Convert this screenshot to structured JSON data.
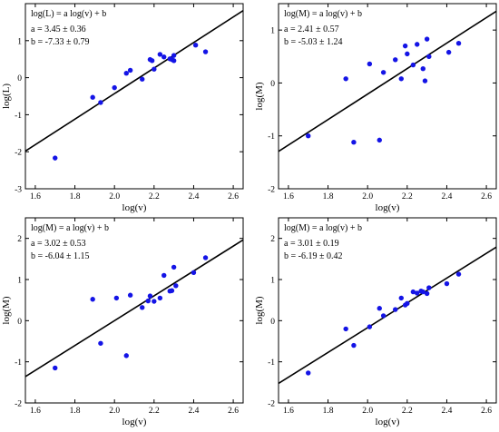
{
  "chart_data": [
    {
      "type": "scatter",
      "equation": "log(L) = a log(v) + b",
      "a_text": "a =  3.45 ± 0.36",
      "b_text": "b = -7.33 ± 0.79",
      "xlabel": "log(v)",
      "ylabel": "log(L)",
      "xlim": [
        1.55,
        2.65
      ],
      "ylim": [
        -3,
        2
      ],
      "xticks": [
        1.6,
        1.8,
        2.0,
        2.2,
        2.4,
        2.6
      ],
      "yticks": [
        -3,
        -2,
        -1,
        0,
        1
      ],
      "fit": {
        "slope": 3.45,
        "intercept": -7.33
      },
      "colors": {
        "points": "#1414e6",
        "line": "#000000"
      },
      "x": [
        1.7,
        1.89,
        1.93,
        2.0,
        2.06,
        2.08,
        2.14,
        2.18,
        2.19,
        2.2,
        2.23,
        2.25,
        2.28,
        2.3,
        2.29,
        2.3,
        2.41,
        2.46
      ],
      "y": [
        -2.17,
        -0.53,
        -0.67,
        -0.27,
        0.12,
        0.2,
        -0.04,
        0.49,
        0.46,
        0.23,
        0.63,
        0.56,
        0.51,
        0.6,
        0.49,
        0.46,
        0.88,
        0.7
      ]
    },
    {
      "type": "scatter",
      "equation": "log(M) = a log(v) + b",
      "a_text": "a =  2.41 ± 0.57",
      "b_text": "b = -5.03 ± 1.24",
      "xlabel": "log(v)",
      "ylabel": "log(M)",
      "xlim": [
        1.55,
        2.65
      ],
      "ylim": [
        -2,
        1.5
      ],
      "xticks": [
        1.6,
        1.8,
        2.0,
        2.2,
        2.4,
        2.6
      ],
      "yticks": [
        -2,
        -1,
        0,
        1
      ],
      "fit": {
        "slope": 2.41,
        "intercept": -5.03
      },
      "colors": {
        "points": "#1414e6",
        "line": "#000000"
      },
      "x": [
        1.7,
        1.89,
        1.93,
        2.01,
        2.06,
        2.08,
        2.14,
        2.17,
        2.19,
        2.2,
        2.23,
        2.25,
        2.28,
        2.29,
        2.3,
        2.31,
        2.41,
        2.46
      ],
      "y": [
        -1.0,
        0.08,
        -1.12,
        0.36,
        -1.08,
        0.2,
        0.44,
        0.08,
        0.7,
        0.55,
        0.34,
        0.73,
        0.27,
        0.04,
        0.83,
        0.5,
        0.58,
        0.75
      ]
    },
    {
      "type": "scatter",
      "equation": "log(M) = a log(v) + b",
      "a_text": "a =  3.02 ± 0.53",
      "b_text": "b = -6.04 ± 1.15",
      "xlabel": "log(v)",
      "ylabel": "log(M)",
      "xlim": [
        1.55,
        2.65
      ],
      "ylim": [
        -2,
        2.5
      ],
      "xticks": [
        1.6,
        1.8,
        2.0,
        2.2,
        2.4,
        2.6
      ],
      "yticks": [
        -2,
        -1,
        0,
        1,
        2
      ],
      "fit": {
        "slope": 3.02,
        "intercept": -6.04
      },
      "colors": {
        "points": "#1414e6",
        "line": "#000000"
      },
      "x": [
        1.7,
        1.89,
        1.93,
        2.01,
        2.06,
        2.08,
        2.14,
        2.17,
        2.18,
        2.2,
        2.23,
        2.25,
        2.28,
        2.29,
        2.3,
        2.31,
        2.4,
        2.46
      ],
      "y": [
        -1.15,
        0.52,
        -0.55,
        0.55,
        -0.85,
        0.62,
        0.32,
        0.48,
        0.6,
        0.47,
        0.55,
        1.1,
        0.72,
        0.73,
        1.3,
        0.85,
        1.17,
        1.53
      ]
    },
    {
      "type": "scatter",
      "equation": "log(M) = a log(v) + b",
      "a_text": "a =  3.01 ± 0.19",
      "b_text": "b = -6.19 ± 0.42",
      "xlabel": "log(v)",
      "ylabel": "log(M)",
      "xlim": [
        1.55,
        2.65
      ],
      "ylim": [
        -2,
        2.5
      ],
      "xticks": [
        1.6,
        1.8,
        2.0,
        2.2,
        2.4,
        2.6
      ],
      "yticks": [
        -2,
        -1,
        0,
        1,
        2
      ],
      "fit": {
        "slope": 3.01,
        "intercept": -6.19
      },
      "colors": {
        "points": "#1414e6",
        "line": "#000000"
      },
      "x": [
        1.7,
        1.89,
        1.93,
        2.01,
        2.06,
        2.08,
        2.14,
        2.17,
        2.19,
        2.2,
        2.23,
        2.25,
        2.27,
        2.28,
        2.3,
        2.31,
        2.4,
        2.46
      ],
      "y": [
        -1.27,
        -0.2,
        -0.6,
        -0.15,
        0.3,
        0.12,
        0.27,
        0.55,
        0.38,
        0.42,
        0.7,
        0.67,
        0.72,
        0.7,
        0.66,
        0.8,
        0.9,
        1.13
      ]
    }
  ]
}
